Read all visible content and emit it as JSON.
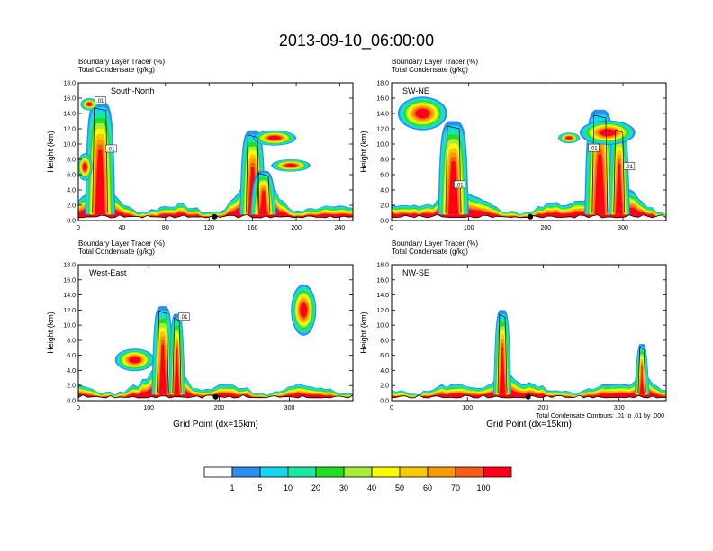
{
  "figure": {
    "title": "2013-09-10_06:00:00",
    "footnote": "Total Condensate Contours: .01 to .01 by .000"
  },
  "colorbar": {
    "labels": [
      "1",
      "5",
      "10",
      "20",
      "30",
      "40",
      "50",
      "60",
      "70",
      "100"
    ],
    "colors": [
      "#ffffff",
      "#2b8ef0",
      "#12d8f0",
      "#18e8a0",
      "#20e020",
      "#a8ec38",
      "#fafa00",
      "#f8c800",
      "#f89a00",
      "#f85a18",
      "#ff0018"
    ]
  },
  "chart_data": [
    {
      "type": "heatmap",
      "title_line1": "Boundary Layer Tracer   (%)",
      "title_line2": "Total Condensate   (g/kg)",
      "panel_label": "South-North",
      "ylabel": "Height (km)",
      "xlabel": "",
      "ylim": [
        0,
        18
      ],
      "yticks": [
        "0.0",
        "2.0",
        "4.0",
        "6.0",
        "8.0",
        "10.0",
        "12.0",
        "14.0",
        "16.0",
        "18.0"
      ],
      "xlim": [
        0,
        252
      ],
      "xticks": [
        0,
        40,
        80,
        120,
        160,
        200,
        240
      ],
      "marker_x": 125,
      "contour_labels": [
        {
          "text": ".01",
          "x": 20,
          "y": 15.6
        },
        {
          "text": ".01",
          "x": 30,
          "y": 9.3
        }
      ],
      "plumes": [
        {
          "x": 20,
          "w": 14,
          "top": 15.5
        },
        {
          "x": 160,
          "w": 12,
          "top": 11.8
        },
        {
          "x": 170,
          "w": 12,
          "top": 6.5
        }
      ],
      "outflows": [
        {
          "x": 10,
          "y": 15.2,
          "rx": 8,
          "ry": 0.8
        },
        {
          "x": 180,
          "y": 10.8,
          "rx": 20,
          "ry": 1.0
        },
        {
          "x": 195,
          "y": 7.2,
          "rx": 18,
          "ry": 0.8
        },
        {
          "x": 6,
          "y": 7.0,
          "rx": 7,
          "ry": 1.8
        }
      ]
    },
    {
      "type": "heatmap",
      "title_line1": "Boundary Layer Tracer   (%)",
      "title_line2": "Total Condensate   (g/kg)",
      "panel_label": "SW-NE",
      "ylabel": "Height (km)",
      "xlabel": "",
      "ylim": [
        0,
        18
      ],
      "yticks": [
        "0.0",
        "2.0",
        "4.0",
        "6.0",
        "8.0",
        "10.0",
        "12.0",
        "14.0",
        "16.0",
        "18.0"
      ],
      "xlim": [
        0,
        356
      ],
      "xticks": [
        0,
        100,
        200,
        300
      ],
      "marker_x": 180,
      "contour_labels": [
        {
          "text": ".01",
          "x": 88,
          "y": 4.6
        },
        {
          "text": ".01",
          "x": 262,
          "y": 9.4
        },
        {
          "text": ".01",
          "x": 308,
          "y": 7.0
        }
      ],
      "plumes": [
        {
          "x": 80,
          "w": 20,
          "top": 13.0
        },
        {
          "x": 270,
          "w": 20,
          "top": 14.5
        },
        {
          "x": 295,
          "w": 14,
          "top": 12.5
        }
      ],
      "outflows": [
        {
          "x": 40,
          "y": 14.0,
          "rx": 32,
          "ry": 2.2
        },
        {
          "x": 280,
          "y": 11.5,
          "rx": 36,
          "ry": 1.6
        },
        {
          "x": 230,
          "y": 10.8,
          "rx": 14,
          "ry": 0.7
        }
      ]
    },
    {
      "type": "heatmap",
      "title_line1": "Boundary Layer Tracer   (%)",
      "title_line2": "Total Condensate   (g/kg)",
      "panel_label": "West-East",
      "ylabel": "Height (km)",
      "xlabel": "Grid Point (dx=15km)",
      "ylim": [
        0,
        18
      ],
      "yticks": [
        "0.0",
        "2.0",
        "4.0",
        "6.0",
        "8.0",
        "10.0",
        "12.0",
        "14.0",
        "16.0",
        "18.0"
      ],
      "xlim": [
        0,
        390
      ],
      "xticks": [
        0,
        100,
        200,
        300
      ],
      "marker_x": 195,
      "contour_labels": [
        {
          "text": ".01",
          "x": 150,
          "y": 11.0
        }
      ],
      "plumes": [
        {
          "x": 120,
          "w": 16,
          "top": 12.5
        },
        {
          "x": 140,
          "w": 12,
          "top": 11.5
        }
      ],
      "outflows": [
        {
          "x": 80,
          "y": 5.4,
          "rx": 28,
          "ry": 1.5
        },
        {
          "x": 320,
          "y": 12.0,
          "rx": 18,
          "ry": 3.4
        }
      ]
    },
    {
      "type": "heatmap",
      "title_line1": "Boundary Layer Tracer   (%)",
      "title_line2": "Total Condensate   (g/kg)",
      "panel_label": "NW-SE",
      "ylabel": "Height (km)",
      "xlabel": "Grid Point (dx=15km)",
      "ylim": [
        0,
        18
      ],
      "yticks": [
        "0.0",
        "2.0",
        "4.0",
        "6.0",
        "8.0",
        "10.0",
        "12.0",
        "14.0",
        "16.0",
        "18.0"
      ],
      "xlim": [
        0,
        362
      ],
      "xticks": [
        0,
        100,
        200,
        300
      ],
      "marker_x": 180,
      "contour_labels": [],
      "plumes": [
        {
          "x": 146,
          "w": 12,
          "top": 12.0
        },
        {
          "x": 330,
          "w": 10,
          "top": 7.5
        }
      ],
      "outflows": []
    }
  ]
}
